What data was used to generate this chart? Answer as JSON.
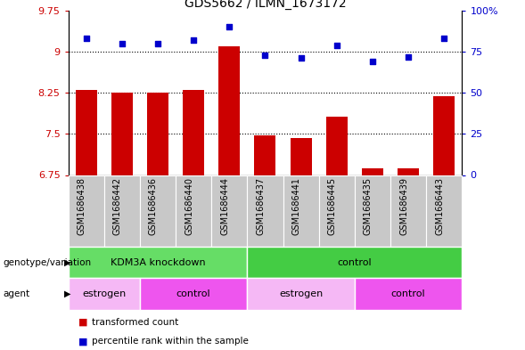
{
  "title": "GDS5662 / ILMN_1673172",
  "samples": [
    "GSM1686438",
    "GSM1686442",
    "GSM1686436",
    "GSM1686440",
    "GSM1686444",
    "GSM1686437",
    "GSM1686441",
    "GSM1686445",
    "GSM1686435",
    "GSM1686439",
    "GSM1686443"
  ],
  "bar_values": [
    8.3,
    8.25,
    8.25,
    8.3,
    9.1,
    7.48,
    7.42,
    7.82,
    6.87,
    6.87,
    8.18
  ],
  "dot_values": [
    83,
    80,
    80,
    82,
    90,
    73,
    71,
    79,
    69,
    72,
    83
  ],
  "ylim_left": [
    6.75,
    9.75
  ],
  "ylim_right": [
    0,
    100
  ],
  "yticks_left": [
    6.75,
    7.5,
    8.25,
    9.0,
    9.75
  ],
  "yticks_right": [
    0,
    25,
    50,
    75,
    100
  ],
  "ytick_labels_left": [
    "6.75",
    "7.5",
    "8.25",
    "9",
    "9.75"
  ],
  "ytick_labels_right": [
    "0",
    "25",
    "50",
    "75",
    "100%"
  ],
  "hlines": [
    9.0,
    8.25,
    7.5
  ],
  "bar_color": "#cc0000",
  "dot_color": "#0000cc",
  "bar_width": 0.6,
  "genotype_groups": [
    {
      "label": "KDM3A knockdown",
      "start": 0,
      "end": 5,
      "color": "#66dd66"
    },
    {
      "label": "control",
      "start": 5,
      "end": 11,
      "color": "#44cc44"
    }
  ],
  "agent_groups": [
    {
      "label": "estrogen",
      "start": 0,
      "end": 2,
      "color": "#f5b8f5"
    },
    {
      "label": "control",
      "start": 2,
      "end": 5,
      "color": "#ee55ee"
    },
    {
      "label": "estrogen",
      "start": 5,
      "end": 8,
      "color": "#f5b8f5"
    },
    {
      "label": "control",
      "start": 8,
      "end": 11,
      "color": "#ee55ee"
    }
  ],
  "genotype_label": "genotype/variation",
  "agent_label": "agent",
  "legend_items": [
    {
      "label": "transformed count",
      "color": "#cc0000"
    },
    {
      "label": "percentile rank within the sample",
      "color": "#0000cc"
    }
  ],
  "bar_color_left": "#cc0000",
  "dot_color_right": "#0000cc",
  "sample_box_color": "#c8c8c8",
  "background_color": "#ffffff"
}
